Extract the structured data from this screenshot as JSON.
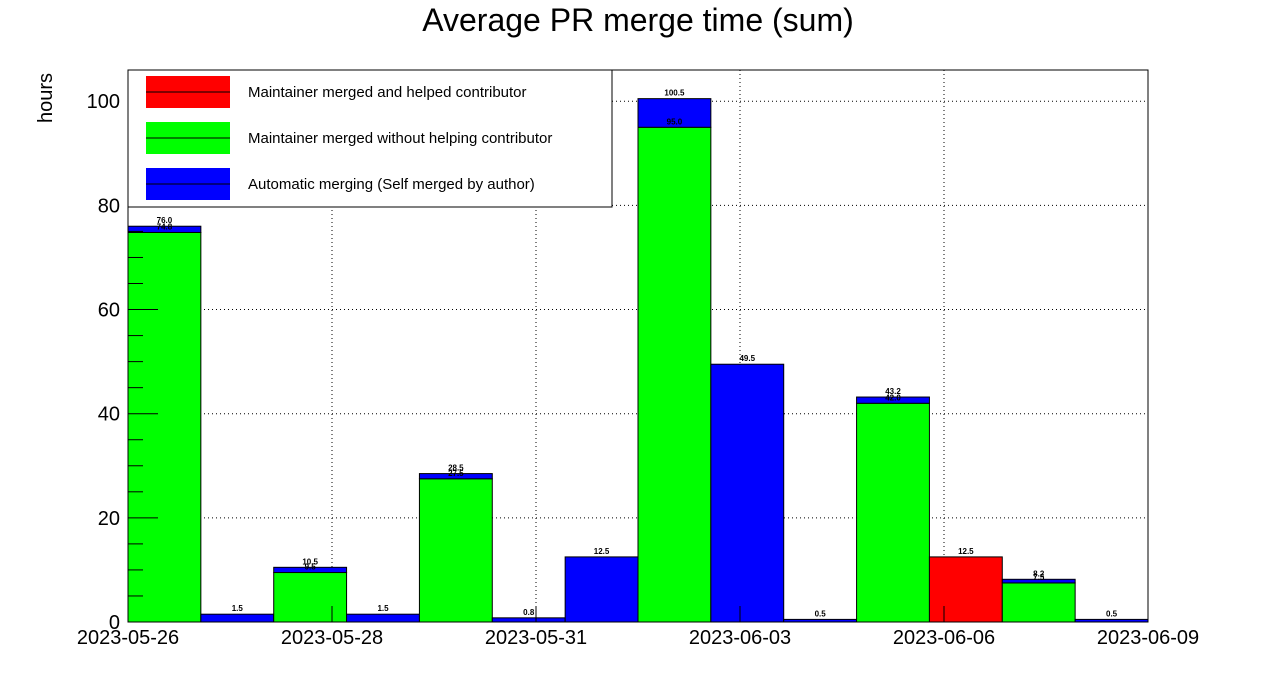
{
  "chart_data": {
    "type": "bar",
    "stacked": true,
    "title": "Average PR merge time (sum)",
    "xlabel": "",
    "ylabel": "hours",
    "ylim": [
      0,
      106
    ],
    "yticks": [
      0,
      20,
      40,
      60,
      80,
      100
    ],
    "x_tick_labels": [
      "2023-05-26",
      "2023-05-28",
      "2023-05-31",
      "2023-06-03",
      "2023-06-06",
      "2023-06-09"
    ],
    "grid": true,
    "legend_position": "top-left",
    "colors": {
      "maintainer_helped": "#ff0000",
      "maintainer_no_help": "#00ff00",
      "automatic": "#0000ff"
    },
    "series": [
      {
        "name": "Maintainer merged and helped contributor",
        "key": "maintainer_helped",
        "values": [
          0,
          0,
          0,
          0,
          0,
          0,
          0,
          0,
          0,
          0,
          0,
          12.5,
          0,
          0
        ]
      },
      {
        "name": "Maintainer merged without helping contributor",
        "key": "maintainer_no_help",
        "values": [
          74.8,
          0,
          9.5,
          0,
          27.5,
          0,
          0,
          95.0,
          0,
          0,
          42.0,
          0,
          7.5,
          0
        ]
      },
      {
        "name": "Automatic merging (Self merged by author)",
        "key": "automatic",
        "values": [
          1.2,
          1.5,
          1.0,
          1.5,
          1.0,
          0.8,
          12.5,
          5.5,
          49.5,
          0.5,
          1.2,
          0,
          0.7,
          0.5
        ]
      }
    ],
    "bar_labels": [
      [
        "74.8",
        "76.0"
      ],
      [
        "1.5"
      ],
      [
        "9.5",
        "10.5"
      ],
      [
        "1.5"
      ],
      [
        "27.5",
        "28.5"
      ],
      [
        "0.8"
      ],
      [
        "12.5"
      ],
      [
        "95.0",
        "100.5"
      ],
      [
        "49.5"
      ],
      [
        "0.5"
      ],
      [
        "42.0",
        "43.2"
      ],
      [
        "12.5"
      ],
      [
        "7.5",
        "8.2"
      ],
      [
        "0.5"
      ]
    ]
  }
}
